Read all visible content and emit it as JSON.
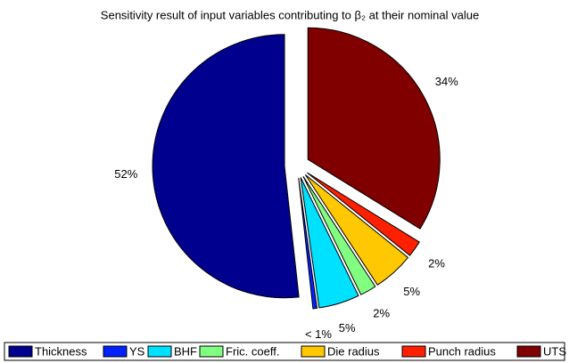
{
  "chart_data": {
    "type": "pie",
    "title": "Sensitivity result of input variables contributing to β₂ at their nominal value",
    "categories": [
      "Thickness",
      "YS",
      "BHF",
      "Fric. coeff.",
      "Die radius",
      "Punch radius",
      "UTS"
    ],
    "values": [
      52,
      0.5,
      5,
      2,
      5,
      2,
      34
    ],
    "value_labels": [
      "52%",
      "< 1%",
      "5%",
      "2%",
      "5%",
      "2%",
      "34%"
    ],
    "colors": [
      "#00008f",
      "#0020ff",
      "#00e0ff",
      "#80ff80",
      "#ffc800",
      "#ff2000",
      "#800000"
    ],
    "legend": "bottom"
  }
}
